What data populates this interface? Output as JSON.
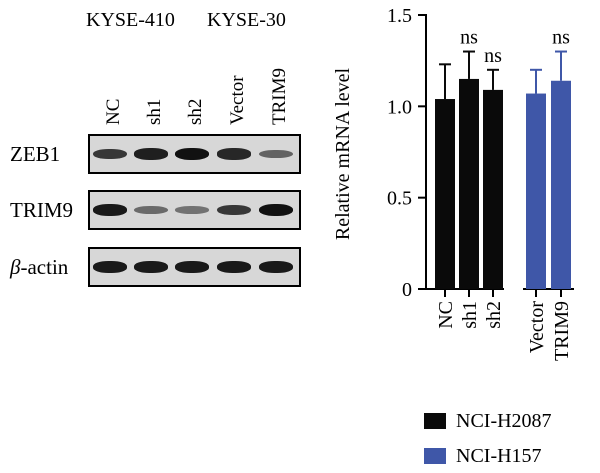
{
  "blot": {
    "group_labels": [
      "KYSE-410",
      "KYSE-30"
    ],
    "lane_labels": [
      "NC",
      "sh1",
      "sh2",
      "Vector",
      "TRIM9"
    ],
    "rows": [
      {
        "label": "ZEB1",
        "intensity": [
          0.75,
          0.9,
          1.0,
          0.85,
          0.45
        ]
      },
      {
        "label": "TRIM9",
        "intensity": [
          0.95,
          0.4,
          0.35,
          0.75,
          1.0
        ]
      },
      {
        "label_prefix": "β",
        "label_suffix": "-actin",
        "intensity": [
          0.95,
          0.95,
          0.95,
          0.95,
          0.95
        ]
      }
    ]
  },
  "chart_data": {
    "type": "bar",
    "ylabel": "Relative mRNA level",
    "ylim": [
      0,
      1.5
    ],
    "yticks": [
      "0",
      "0.5",
      "1.0",
      "1.5"
    ],
    "categories": [
      "NC",
      "sh1",
      "sh2",
      "Vector",
      "TRIM9"
    ],
    "values": [
      1.04,
      1.15,
      1.09,
      1.07,
      1.14
    ],
    "errors": [
      0.19,
      0.15,
      0.11,
      0.13,
      0.16
    ],
    "annotations": [
      "",
      "ns",
      "ns",
      "",
      "ns"
    ],
    "series": [
      {
        "name": "NCI-H2087",
        "color": "#0a0a0a",
        "categories": [
          "NC",
          "sh1",
          "sh2"
        ]
      },
      {
        "name": "NCI-H157",
        "color": "#3f57a8",
        "categories": [
          "Vector",
          "TRIM9"
        ]
      }
    ],
    "legend_position": "bottom-right"
  }
}
